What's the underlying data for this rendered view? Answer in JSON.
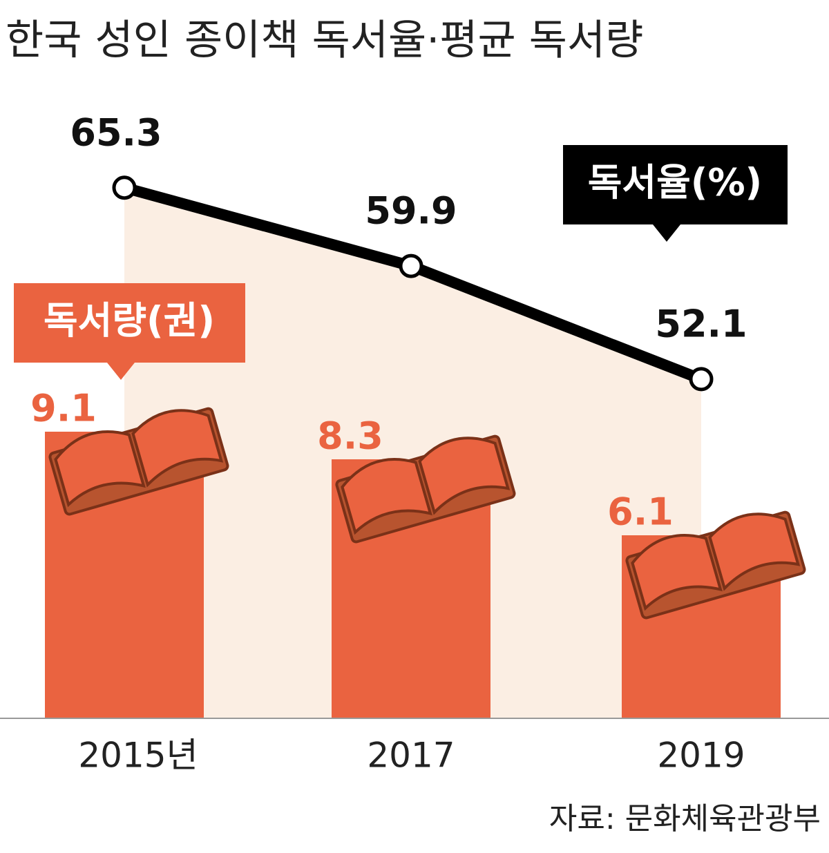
{
  "chart_data": {
    "type": "bar",
    "title": "한국 성인 종이책 독서율·평균 독서량",
    "categories": [
      "2015년",
      "2017",
      "2019"
    ],
    "series": [
      {
        "name": "독서량(권)",
        "type": "bar",
        "color": "#ea6340",
        "values": [
          9.1,
          8.3,
          6.1
        ]
      },
      {
        "name": "독서율(%)",
        "type": "line",
        "axis": "y2",
        "color": "#000000",
        "values": [
          65.3,
          59.9,
          52.1
        ]
      }
    ],
    "ylim": [
      0,
      20
    ],
    "y2lim": [
      40,
      70
    ],
    "area_color": "#fbeee3",
    "source": "자료: 문화체육관광부"
  }
}
